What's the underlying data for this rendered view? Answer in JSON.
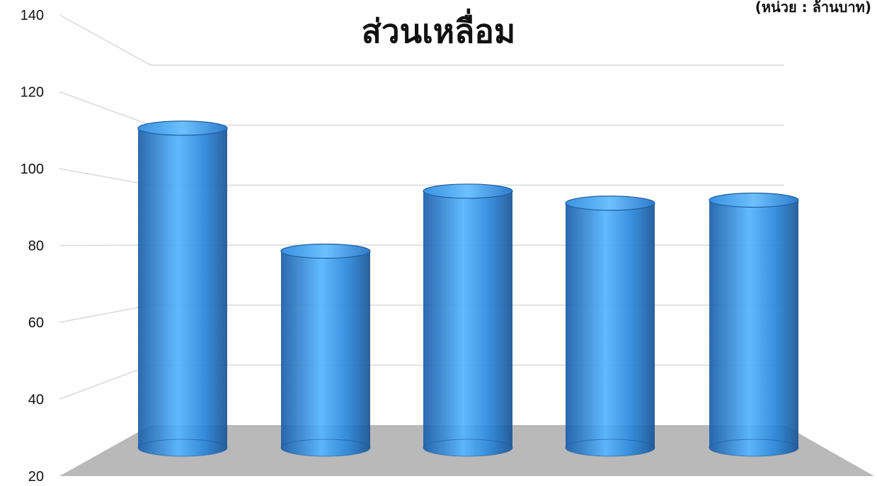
{
  "chart_data": {
    "type": "bar",
    "style": "3d-cylinder",
    "title": "ส่วนเหลื่อม",
    "unit_label": "(หน่วย : ล้านบาท)",
    "categories": [
      "",
      "",
      "",
      "",
      ""
    ],
    "values": [
      119,
      78,
      98,
      94,
      95
    ],
    "ylim": [
      20,
      140
    ],
    "yticks": [
      20,
      40,
      60,
      80,
      100,
      120,
      140
    ],
    "grid": true,
    "legend": "none",
    "bar_color": "#2a86d8",
    "bar_highlight": "#55b4ff",
    "floor_color": "#b9b9b9"
  }
}
